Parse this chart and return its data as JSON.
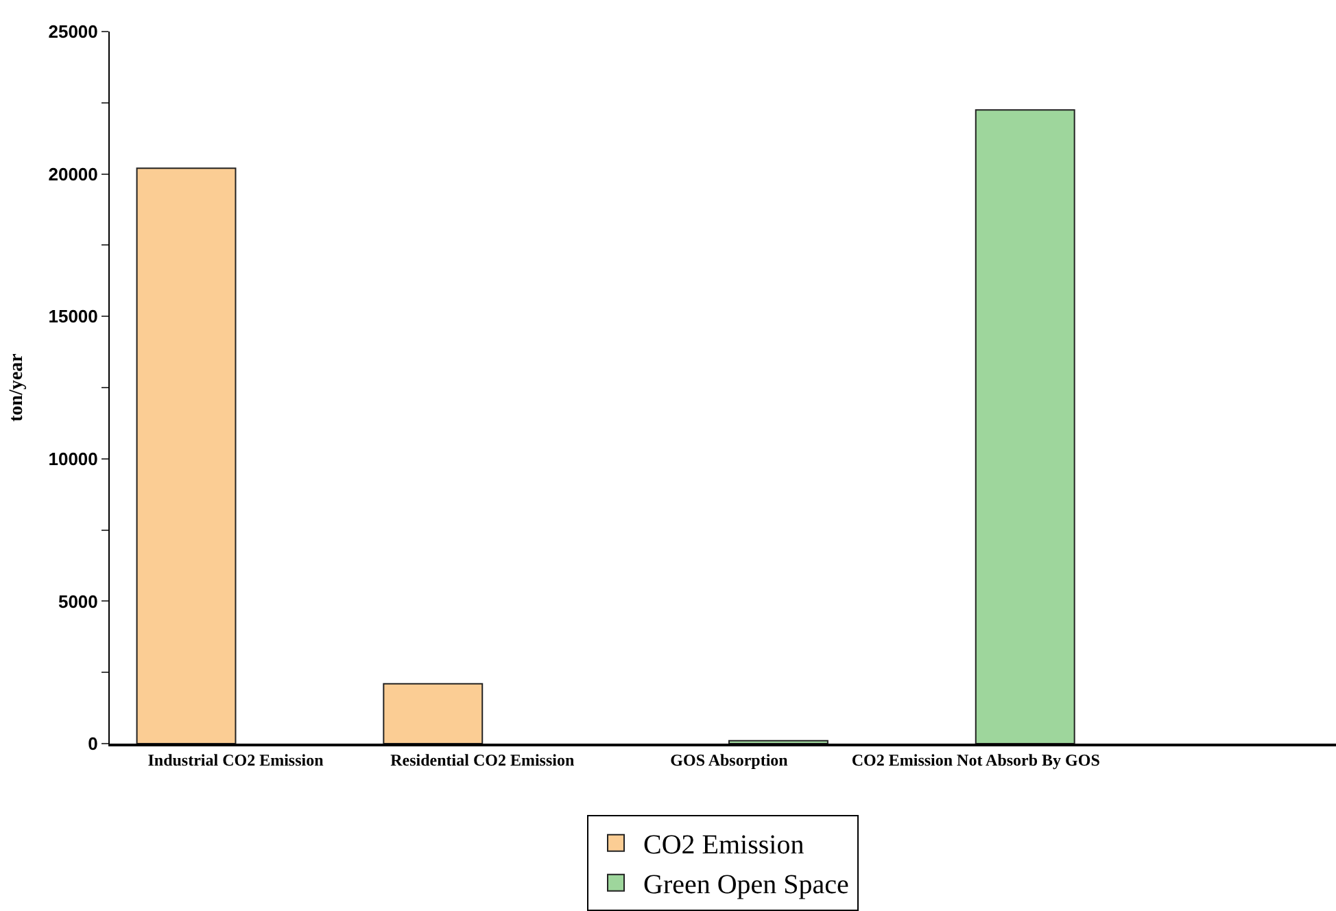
{
  "chart_data": {
    "type": "bar",
    "ylabel": "ton/year",
    "categories": [
      "Industrial CO2 Emission",
      "Residential CO2 Emission",
      "GOS Absorption",
      "CO2 Emission Not Absorb By GOS"
    ],
    "series": [
      {
        "name": "CO2 Emission",
        "color": "#fbcd94",
        "values": [
          20200,
          2100,
          null,
          null
        ]
      },
      {
        "name": "Green Open Space",
        "color": "#9ed69c",
        "values": [
          null,
          null,
          100,
          22250
        ]
      }
    ],
    "ylim": [
      0,
      25000
    ],
    "yticks": [
      0,
      {
        "value": 2500,
        "label": null
      },
      5000,
      {
        "value": 7500,
        "label": null
      },
      10000,
      {
        "value": 12500,
        "label": null
      },
      15000,
      {
        "value": 17500,
        "label": null
      },
      20000,
      {
        "value": 22500,
        "label": null
      },
      25000
    ],
    "legend": "bottom"
  }
}
